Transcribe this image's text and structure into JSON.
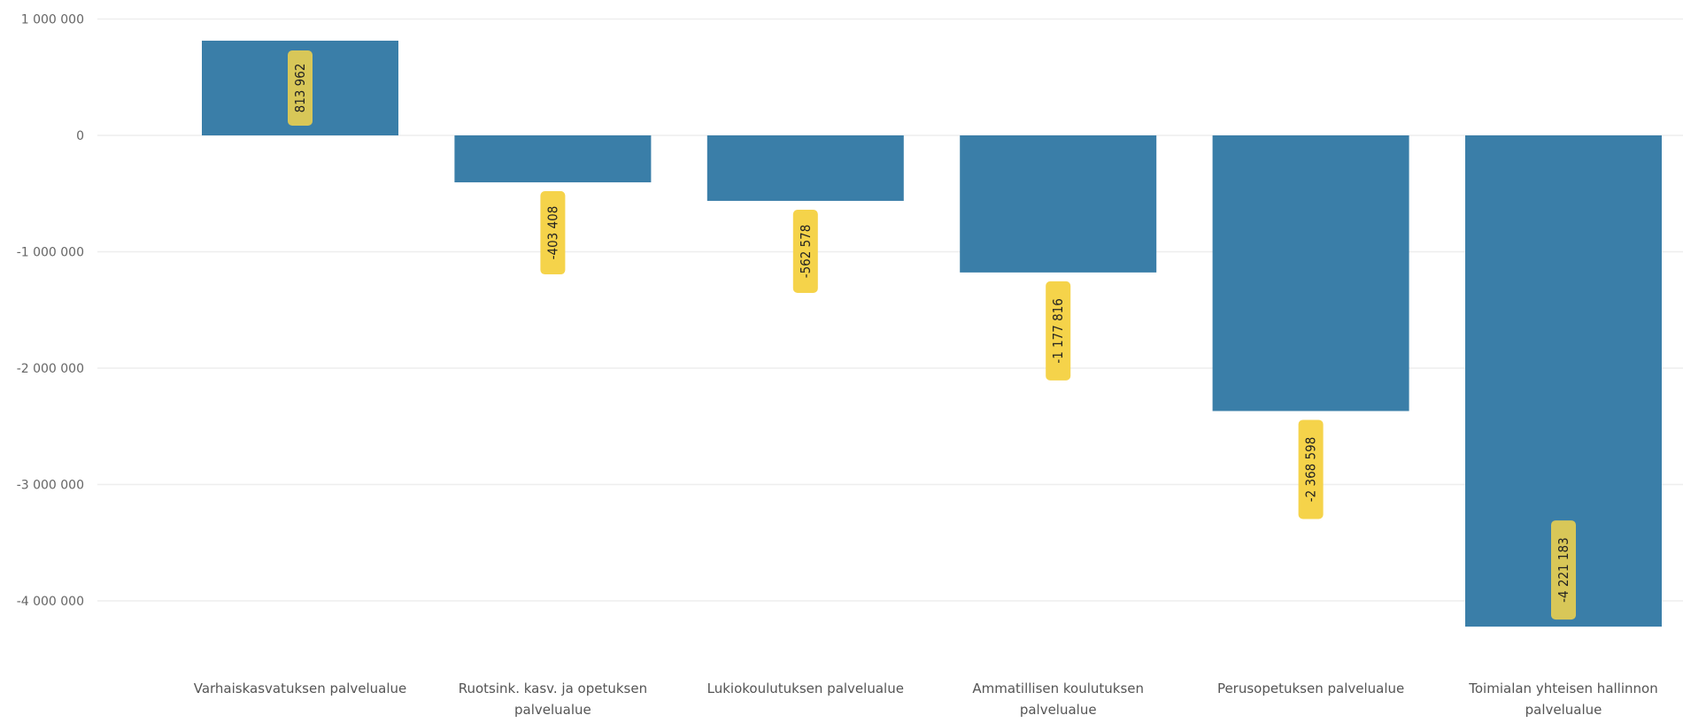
{
  "chart_data": {
    "type": "bar",
    "categories": [
      "Varhaiskasvatuksen palvelualue",
      "Ruotsink. kasv. ja opetuksen palvelualue",
      "Lukiokoulutuksen palvelualue",
      "Ammatillisen koulutuksen palvelualue",
      "Perusopetuksen palvelualue",
      "Toimialan yhteisen hallinnon palvelualue"
    ],
    "category_lines": [
      [
        "Varhaiskasvatuksen palvelualue"
      ],
      [
        "Ruotsink. kasv. ja opetuksen",
        "palvelualue"
      ],
      [
        "Lukiokoulutuksen palvelualue"
      ],
      [
        "Ammatillisen koulutuksen",
        "palvelualue"
      ],
      [
        "Perusopetuksen palvelualue"
      ],
      [
        "Toimialan yhteisen hallinnon",
        "palvelualue"
      ]
    ],
    "values": [
      813962,
      -403408,
      -562578,
      -1177816,
      -2368598,
      -4221183
    ],
    "data_labels": [
      "813 962",
      "-403 408",
      "-562 578",
      "-1 177 816",
      "-2 368 598",
      "-4 221 183"
    ],
    "yticks": [
      1000000,
      0,
      -1000000,
      -2000000,
      -3000000,
      -4000000
    ],
    "ytick_labels": [
      "1 000 000",
      "0",
      "-1 000 000",
      "-2 000 000",
      "-3 000 000",
      "-4 000 000"
    ],
    "ylim": [
      -4221183,
      1000000
    ],
    "title": "",
    "xlabel": "",
    "ylabel": "",
    "grid": true,
    "legend": "none",
    "colors": {
      "bar": "#3a7ea8",
      "label_bg": "#f5d34a",
      "grid": "#eeeeee"
    }
  }
}
